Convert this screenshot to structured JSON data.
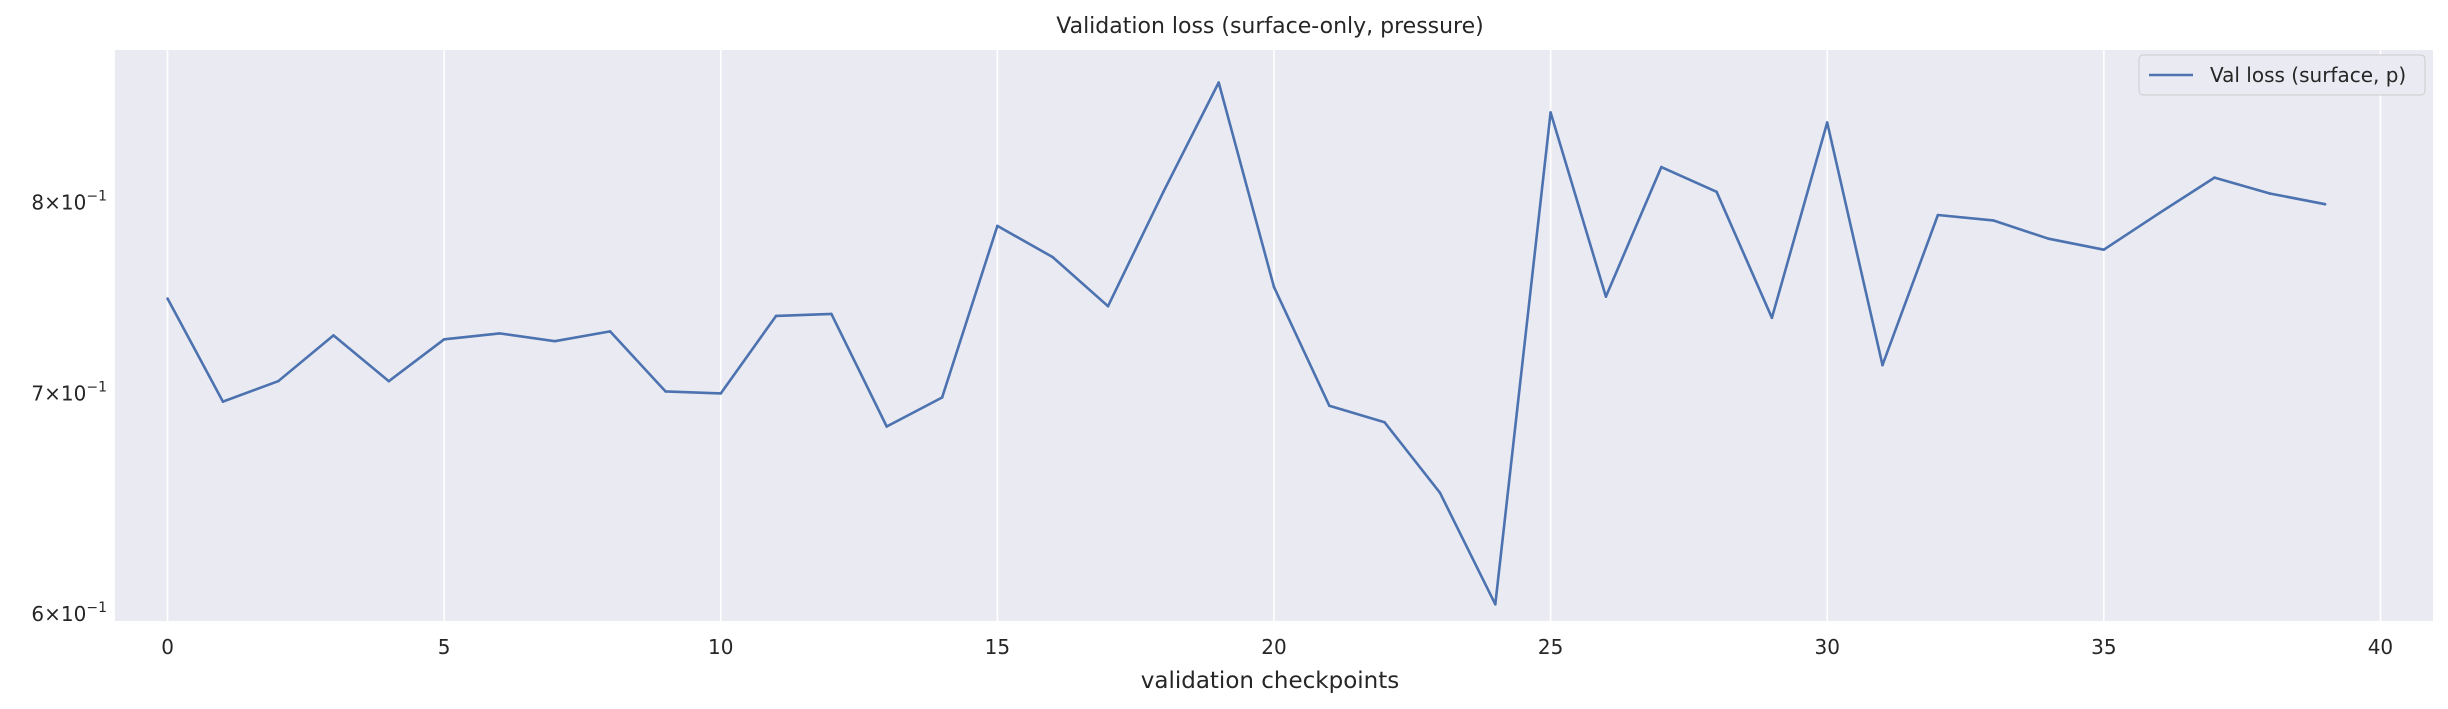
{
  "chart_data": {
    "type": "line",
    "title": "Validation loss (surface-only, pressure)",
    "xlabel": "validation checkpoints",
    "ylabel": "",
    "yscale": "log",
    "xlim": [
      -0.95,
      40.95
    ],
    "ylim": [
      0.597,
      0.89
    ],
    "grid": "vertical lines at x ticks",
    "background_color": "#EAEAF2",
    "line_color": "#4C72B0",
    "legend_position": "top-right",
    "x_ticks": [
      0,
      5,
      10,
      15,
      20,
      25,
      30,
      35,
      40
    ],
    "x_tick_labels": [
      "0",
      "5",
      "10",
      "15",
      "20",
      "25",
      "30",
      "35",
      "40"
    ],
    "y_ticks": [
      0.6,
      0.7,
      0.8
    ],
    "y_tick_labels": [
      {
        "base": "6×10",
        "exp": "−1"
      },
      {
        "base": "7×10",
        "exp": "−1"
      },
      {
        "base": "8×10",
        "exp": "−1"
      }
    ],
    "series": [
      {
        "name": "Val loss (surface, p)",
        "x": [
          0,
          1,
          2,
          3,
          4,
          5,
          6,
          7,
          8,
          9,
          10,
          11,
          12,
          13,
          14,
          15,
          16,
          17,
          18,
          19,
          20,
          21,
          22,
          23,
          24,
          25,
          26,
          27,
          28,
          29,
          30,
          31,
          32,
          33,
          34,
          35,
          36,
          37,
          38,
          39
        ],
        "values": [
          0.748,
          0.696,
          0.706,
          0.729,
          0.706,
          0.727,
          0.73,
          0.726,
          0.731,
          0.701,
          0.7,
          0.739,
          0.74,
          0.684,
          0.698,
          0.787,
          0.77,
          0.744,
          0.806,
          0.87,
          0.754,
          0.694,
          0.686,
          0.653,
          0.604,
          0.852,
          0.749,
          0.82,
          0.806,
          0.738,
          0.846,
          0.714,
          0.793,
          0.79,
          0.78,
          0.774,
          0.794,
          0.814,
          0.805,
          0.799
        ]
      }
    ]
  }
}
